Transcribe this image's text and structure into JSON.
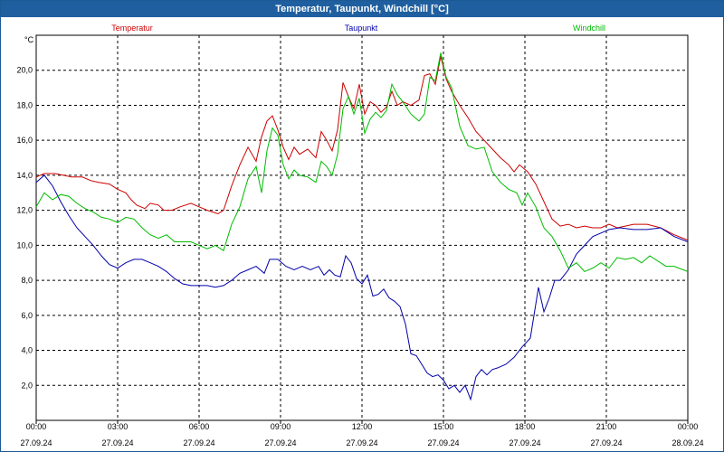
{
  "window": {
    "title": "Temperatur, Taupunkt, Windchill [°C]"
  },
  "chart_data": {
    "type": "line",
    "title": "Temperatur, Taupunkt, Windchill [°C]",
    "ylabel": "°C",
    "ylim": [
      0,
      22
    ],
    "xlim": [
      0,
      24
    ],
    "grid": true,
    "yticks": [
      {
        "value": 2,
        "label": "2,0"
      },
      {
        "value": 4,
        "label": "4,0"
      },
      {
        "value": 6,
        "label": "6,0"
      },
      {
        "value": 8,
        "label": "8,0"
      },
      {
        "value": 10,
        "label": "10,0"
      },
      {
        "value": 12,
        "label": "12,0"
      },
      {
        "value": 14,
        "label": "14,0"
      },
      {
        "value": 16,
        "label": "16,0"
      },
      {
        "value": 18,
        "label": "18,0"
      },
      {
        "value": 20,
        "label": "20,0"
      }
    ],
    "xticks": [
      {
        "value": 0,
        "time": "00:00",
        "date": "27.09.24"
      },
      {
        "value": 3,
        "time": "03:00",
        "date": "27.09.24"
      },
      {
        "value": 6,
        "time": "06:00",
        "date": "27.09.24"
      },
      {
        "value": 9,
        "time": "09:00",
        "date": "27.09.24"
      },
      {
        "value": 12,
        "time": "12:00",
        "date": "27.09.24"
      },
      {
        "value": 15,
        "time": "15:00",
        "date": "27.09.24"
      },
      {
        "value": 18,
        "time": "18:00",
        "date": "27.09.24"
      },
      {
        "value": 21,
        "time": "21:00",
        "date": "27.09.24"
      },
      {
        "value": 24,
        "time": "00:00",
        "date": "28.09.24"
      }
    ],
    "series": [
      {
        "name": "Temperatur",
        "color": "#cc0000",
        "points": [
          [
            0,
            13.9
          ],
          [
            0.3,
            14.1
          ],
          [
            0.7,
            14.1
          ],
          [
            1,
            14.0
          ],
          [
            1.3,
            13.9
          ],
          [
            1.7,
            13.9
          ],
          [
            2,
            13.7
          ],
          [
            2.3,
            13.6
          ],
          [
            2.7,
            13.5
          ],
          [
            3,
            13.2
          ],
          [
            3.3,
            13.0
          ],
          [
            3.5,
            12.6
          ],
          [
            3.7,
            12.3
          ],
          [
            4,
            12.1
          ],
          [
            4.2,
            12.4
          ],
          [
            4.5,
            12.3
          ],
          [
            4.7,
            12.0
          ],
          [
            5,
            12.0
          ],
          [
            5.3,
            12.2
          ],
          [
            5.7,
            12.4
          ],
          [
            6,
            12.2
          ],
          [
            6.3,
            12.0
          ],
          [
            6.7,
            11.8
          ],
          [
            6.9,
            12.0
          ],
          [
            7.2,
            13.4
          ],
          [
            7.5,
            14.6
          ],
          [
            7.8,
            15.6
          ],
          [
            8.1,
            14.8
          ],
          [
            8.3,
            16.2
          ],
          [
            8.5,
            17.1
          ],
          [
            8.7,
            17.4
          ],
          [
            8.9,
            16.6
          ],
          [
            9.1,
            15.6
          ],
          [
            9.3,
            14.9
          ],
          [
            9.5,
            15.6
          ],
          [
            9.7,
            15.2
          ],
          [
            10,
            15.5
          ],
          [
            10.3,
            15.0
          ],
          [
            10.5,
            16.5
          ],
          [
            10.7,
            16.0
          ],
          [
            10.9,
            15.4
          ],
          [
            11.1,
            16.6
          ],
          [
            11.3,
            19.3
          ],
          [
            11.5,
            18.5
          ],
          [
            11.7,
            17.8
          ],
          [
            11.9,
            19.2
          ],
          [
            12.1,
            17.5
          ],
          [
            12.3,
            18.2
          ],
          [
            12.5,
            18.0
          ],
          [
            12.7,
            17.6
          ],
          [
            12.9,
            17.9
          ],
          [
            13.1,
            18.8
          ],
          [
            13.3,
            18.0
          ],
          [
            13.5,
            18.2
          ],
          [
            13.8,
            18.0
          ],
          [
            14.1,
            18.3
          ],
          [
            14.3,
            19.7
          ],
          [
            14.5,
            19.8
          ],
          [
            14.7,
            19.2
          ],
          [
            14.9,
            20.8
          ],
          [
            15.1,
            19.5
          ],
          [
            15.3,
            18.8
          ],
          [
            15.6,
            18.0
          ],
          [
            15.9,
            17.3
          ],
          [
            16.2,
            16.5
          ],
          [
            16.5,
            16.0
          ],
          [
            16.8,
            15.5
          ],
          [
            17.1,
            15.0
          ],
          [
            17.4,
            14.6
          ],
          [
            17.6,
            14.2
          ],
          [
            17.8,
            14.6
          ],
          [
            18.1,
            14.2
          ],
          [
            18.4,
            13.5
          ],
          [
            18.7,
            12.5
          ],
          [
            19,
            11.5
          ],
          [
            19.3,
            11.1
          ],
          [
            19.6,
            11.2
          ],
          [
            19.9,
            11.0
          ],
          [
            20.2,
            11.1
          ],
          [
            20.5,
            11.0
          ],
          [
            20.8,
            11.0
          ],
          [
            21.1,
            11.2
          ],
          [
            21.4,
            11.0
          ],
          [
            21.7,
            11.1
          ],
          [
            22,
            11.2
          ],
          [
            22.5,
            11.2
          ],
          [
            23,
            11.0
          ],
          [
            23.5,
            10.6
          ],
          [
            24,
            10.3
          ]
        ]
      },
      {
        "name": "Taupunkt",
        "color": "#0000aa",
        "points": [
          [
            0,
            13.6
          ],
          [
            0.3,
            14.0
          ],
          [
            0.6,
            13.4
          ],
          [
            0.9,
            12.5
          ],
          [
            1.2,
            11.7
          ],
          [
            1.5,
            11.0
          ],
          [
            1.8,
            10.5
          ],
          [
            2.1,
            10.0
          ],
          [
            2.4,
            9.4
          ],
          [
            2.7,
            8.9
          ],
          [
            3,
            8.7
          ],
          [
            3.3,
            9.0
          ],
          [
            3.6,
            9.2
          ],
          [
            3.9,
            9.2
          ],
          [
            4.2,
            9.0
          ],
          [
            4.5,
            8.8
          ],
          [
            4.8,
            8.5
          ],
          [
            5.1,
            8.1
          ],
          [
            5.4,
            7.8
          ],
          [
            5.7,
            7.7
          ],
          [
            6,
            7.7
          ],
          [
            6.3,
            7.7
          ],
          [
            6.6,
            7.6
          ],
          [
            6.9,
            7.7
          ],
          [
            7.2,
            8.0
          ],
          [
            7.5,
            8.4
          ],
          [
            7.8,
            8.6
          ],
          [
            8.1,
            8.8
          ],
          [
            8.4,
            8.4
          ],
          [
            8.6,
            9.2
          ],
          [
            8.9,
            9.2
          ],
          [
            9.2,
            8.8
          ],
          [
            9.5,
            8.6
          ],
          [
            9.8,
            8.8
          ],
          [
            10.1,
            8.6
          ],
          [
            10.4,
            8.8
          ],
          [
            10.6,
            8.3
          ],
          [
            10.8,
            8.6
          ],
          [
            11,
            8.3
          ],
          [
            11.2,
            8.2
          ],
          [
            11.4,
            9.4
          ],
          [
            11.6,
            9.0
          ],
          [
            11.8,
            8.1
          ],
          [
            12,
            7.8
          ],
          [
            12.2,
            8.3
          ],
          [
            12.4,
            7.1
          ],
          [
            12.6,
            7.2
          ],
          [
            12.8,
            7.5
          ],
          [
            13,
            7.0
          ],
          [
            13.2,
            6.8
          ],
          [
            13.4,
            6.5
          ],
          [
            13.6,
            5.5
          ],
          [
            13.8,
            3.8
          ],
          [
            14,
            3.7
          ],
          [
            14.2,
            3.2
          ],
          [
            14.4,
            2.7
          ],
          [
            14.6,
            2.5
          ],
          [
            14.8,
            2.6
          ],
          [
            15,
            2.3
          ],
          [
            15.2,
            1.8
          ],
          [
            15.4,
            2.0
          ],
          [
            15.6,
            1.6
          ],
          [
            15.8,
            2.0
          ],
          [
            16,
            1.2
          ],
          [
            16.2,
            2.5
          ],
          [
            16.4,
            2.9
          ],
          [
            16.6,
            2.6
          ],
          [
            16.8,
            2.9
          ],
          [
            17,
            3.0
          ],
          [
            17.3,
            3.2
          ],
          [
            17.6,
            3.6
          ],
          [
            17.9,
            4.2
          ],
          [
            18.2,
            4.7
          ],
          [
            18.5,
            7.6
          ],
          [
            18.7,
            6.2
          ],
          [
            18.9,
            7.0
          ],
          [
            19.1,
            8.0
          ],
          [
            19.3,
            8.0
          ],
          [
            19.6,
            8.6
          ],
          [
            19.9,
            9.5
          ],
          [
            20.2,
            10.0
          ],
          [
            20.5,
            10.5
          ],
          [
            20.8,
            10.7
          ],
          [
            21.1,
            10.9
          ],
          [
            21.5,
            11.0
          ],
          [
            22,
            10.9
          ],
          [
            22.5,
            10.9
          ],
          [
            23,
            11.0
          ],
          [
            23.5,
            10.5
          ],
          [
            24,
            10.2
          ]
        ]
      },
      {
        "name": "Windchill",
        "color": "#00bb00",
        "points": [
          [
            0,
            12.2
          ],
          [
            0.3,
            13.0
          ],
          [
            0.6,
            12.6
          ],
          [
            0.9,
            12.9
          ],
          [
            1.2,
            12.8
          ],
          [
            1.5,
            12.4
          ],
          [
            1.8,
            12.1
          ],
          [
            2.1,
            11.9
          ],
          [
            2.4,
            11.6
          ],
          [
            2.7,
            11.5
          ],
          [
            3,
            11.3
          ],
          [
            3.3,
            11.6
          ],
          [
            3.6,
            11.5
          ],
          [
            3.9,
            11.0
          ],
          [
            4.2,
            10.6
          ],
          [
            4.5,
            10.4
          ],
          [
            4.8,
            10.6
          ],
          [
            5.1,
            10.2
          ],
          [
            5.4,
            10.2
          ],
          [
            5.7,
            10.2
          ],
          [
            6,
            10.0
          ],
          [
            6.3,
            9.8
          ],
          [
            6.6,
            10.0
          ],
          [
            6.9,
            9.7
          ],
          [
            7.2,
            11.2
          ],
          [
            7.5,
            12.2
          ],
          [
            7.8,
            13.8
          ],
          [
            8.1,
            14.5
          ],
          [
            8.3,
            13.0
          ],
          [
            8.5,
            15.4
          ],
          [
            8.7,
            16.7
          ],
          [
            8.9,
            16.3
          ],
          [
            9.1,
            14.6
          ],
          [
            9.3,
            13.8
          ],
          [
            9.5,
            14.3
          ],
          [
            9.7,
            14.0
          ],
          [
            10,
            13.9
          ],
          [
            10.3,
            13.6
          ],
          [
            10.5,
            14.8
          ],
          [
            10.7,
            14.5
          ],
          [
            10.9,
            14.0
          ],
          [
            11.1,
            15.2
          ],
          [
            11.3,
            17.8
          ],
          [
            11.5,
            18.5
          ],
          [
            11.7,
            17.5
          ],
          [
            11.9,
            18.4
          ],
          [
            12.1,
            16.4
          ],
          [
            12.3,
            17.2
          ],
          [
            12.5,
            17.6
          ],
          [
            12.7,
            17.3
          ],
          [
            12.9,
            17.7
          ],
          [
            13.1,
            19.2
          ],
          [
            13.3,
            18.6
          ],
          [
            13.5,
            18.2
          ],
          [
            13.8,
            17.5
          ],
          [
            14.1,
            17.1
          ],
          [
            14.3,
            17.5
          ],
          [
            14.5,
            19.6
          ],
          [
            14.7,
            19.4
          ],
          [
            14.9,
            21.0
          ],
          [
            15.1,
            19.6
          ],
          [
            15.3,
            19.0
          ],
          [
            15.6,
            16.8
          ],
          [
            15.9,
            15.7
          ],
          [
            16.2,
            15.5
          ],
          [
            16.5,
            15.6
          ],
          [
            16.8,
            14.2
          ],
          [
            17.1,
            13.6
          ],
          [
            17.4,
            13.2
          ],
          [
            17.7,
            13.0
          ],
          [
            17.9,
            12.3
          ],
          [
            18.1,
            13.0
          ],
          [
            18.4,
            12.2
          ],
          [
            18.7,
            11.0
          ],
          [
            19,
            10.5
          ],
          [
            19.3,
            9.7
          ],
          [
            19.6,
            8.7
          ],
          [
            19.9,
            9.0
          ],
          [
            20.2,
            8.5
          ],
          [
            20.5,
            8.7
          ],
          [
            20.8,
            9.0
          ],
          [
            21.1,
            8.7
          ],
          [
            21.4,
            9.3
          ],
          [
            21.7,
            9.2
          ],
          [
            22,
            9.3
          ],
          [
            22.3,
            9.0
          ],
          [
            22.6,
            9.4
          ],
          [
            22.9,
            9.1
          ],
          [
            23.2,
            8.8
          ],
          [
            23.5,
            8.8
          ],
          [
            24,
            8.5
          ]
        ]
      }
    ]
  }
}
